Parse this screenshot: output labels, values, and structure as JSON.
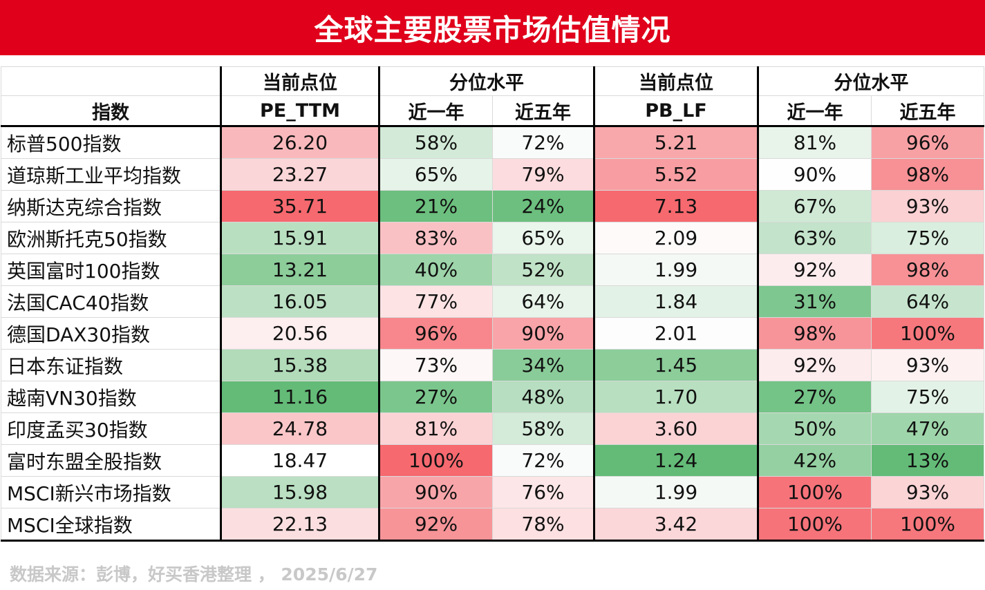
{
  "title": "全球主要股票市场估值情况",
  "headers": {
    "index_col": "指数",
    "pe_group": "当前点位",
    "pe_sub": "PE_TTM",
    "pe_pct_group": "分位水平",
    "pe_pct_1y": "近一年",
    "pe_pct_5y": "近五年",
    "pb_group": "当前点位",
    "pb_sub": "PB_LF",
    "pb_pct_group": "分位水平",
    "pb_pct_1y": "近一年",
    "pb_pct_5y": "近五年"
  },
  "rows": [
    {
      "name": "标普500指数",
      "cells": [
        {
          "v": "26.20",
          "bg": "#f9b9bc"
        },
        {
          "v": "58%",
          "bg": "#d2ead7"
        },
        {
          "v": "72%",
          "bg": "#f8fbf9"
        },
        {
          "v": "5.21",
          "bg": "#f8a8ab"
        },
        {
          "v": "81%",
          "bg": "#e8f4ea"
        },
        {
          "v": "96%",
          "bg": "#f8a1a5"
        }
      ]
    },
    {
      "name": "道琼斯工业平均指数",
      "cells": [
        {
          "v": "23.27",
          "bg": "#fbd6d8"
        },
        {
          "v": "65%",
          "bg": "#e6f3e8"
        },
        {
          "v": "79%",
          "bg": "#fcdcde"
        },
        {
          "v": "5.52",
          "bg": "#f89ea2"
        },
        {
          "v": "90%",
          "bg": "#fdfefd"
        },
        {
          "v": "98%",
          "bg": "#f79195"
        }
      ]
    },
    {
      "name": "纳斯达克综合指数",
      "cells": [
        {
          "v": "35.71",
          "bg": "#f6696f"
        },
        {
          "v": "21%",
          "bg": "#6cbf7e"
        },
        {
          "v": "24%",
          "bg": "#6cbf7e"
        },
        {
          "v": "7.13",
          "bg": "#f6696f"
        },
        {
          "v": "67%",
          "bg": "#cfe9d4"
        },
        {
          "v": "93%",
          "bg": "#fbd1d3"
        }
      ]
    },
    {
      "name": "欧洲斯托克50指数",
      "cells": [
        {
          "v": "15.91",
          "bg": "#b9dfc1"
        },
        {
          "v": "83%",
          "bg": "#fac1c4"
        },
        {
          "v": "65%",
          "bg": "#eaf5ec"
        },
        {
          "v": "2.09",
          "bg": "#fefafa"
        },
        {
          "v": "63%",
          "bg": "#c3e3ca"
        },
        {
          "v": "75%",
          "bg": "#d9eede"
        }
      ]
    },
    {
      "name": "英国富时100指数",
      "cells": [
        {
          "v": "13.21",
          "bg": "#8ccd9a"
        },
        {
          "v": "40%",
          "bg": "#9dd4a9"
        },
        {
          "v": "52%",
          "bg": "#c0e2c7"
        },
        {
          "v": "1.99",
          "bg": "#f4f9f5"
        },
        {
          "v": "92%",
          "bg": "#fdecee"
        },
        {
          "v": "98%",
          "bg": "#f79195"
        }
      ]
    },
    {
      "name": "法国CAC40指数",
      "cells": [
        {
          "v": "16.05",
          "bg": "#bce0c3"
        },
        {
          "v": "77%",
          "bg": "#fde3e4"
        },
        {
          "v": "64%",
          "bg": "#e8f4ea"
        },
        {
          "v": "1.84",
          "bg": "#e3f2e6"
        },
        {
          "v": "31%",
          "bg": "#7ec790"
        },
        {
          "v": "64%",
          "bg": "#c7e5ce"
        }
      ]
    },
    {
      "name": "德国DAX30指数",
      "cells": [
        {
          "v": "20.56",
          "bg": "#fdeeef"
        },
        {
          "v": "96%",
          "bg": "#f7878c"
        },
        {
          "v": "90%",
          "bg": "#f8a4a8"
        },
        {
          "v": "2.01",
          "bg": "#fcfdfc"
        },
        {
          "v": "98%",
          "bg": "#f79499"
        },
        {
          "v": "100%",
          "bg": "#f6787d"
        }
      ]
    },
    {
      "name": "日本东证指数",
      "cells": [
        {
          "v": "15.38",
          "bg": "#b1dbb9"
        },
        {
          "v": "73%",
          "bg": "#fef7f7"
        },
        {
          "v": "34%",
          "bg": "#8acc99"
        },
        {
          "v": "1.45",
          "bg": "#8ccd9a"
        },
        {
          "v": "92%",
          "bg": "#fdecee"
        },
        {
          "v": "93%",
          "bg": "#fdf1f2"
        }
      ]
    },
    {
      "name": "越南VN30指数",
      "cells": [
        {
          "v": "11.16",
          "bg": "#63bb77"
        },
        {
          "v": "27%",
          "bg": "#7bc68d"
        },
        {
          "v": "48%",
          "bg": "#b7dec0"
        },
        {
          "v": "1.70",
          "bg": "#b8dfc0"
        },
        {
          "v": "27%",
          "bg": "#74c387"
        },
        {
          "v": "75%",
          "bg": "#e3f2e6"
        }
      ]
    },
    {
      "name": "印度孟买30指数",
      "cells": [
        {
          "v": "24.78",
          "bg": "#fac6c8"
        },
        {
          "v": "81%",
          "bg": "#fcd3d5"
        },
        {
          "v": "58%",
          "bg": "#d4ebd9"
        },
        {
          "v": "3.60",
          "bg": "#fbd3d5"
        },
        {
          "v": "50%",
          "bg": "#a5d8b0"
        },
        {
          "v": "47%",
          "bg": "#9fd5aa"
        }
      ]
    },
    {
      "name": "富时东盟全股指数",
      "cells": [
        {
          "v": "18.47",
          "bg": "#ffffff"
        },
        {
          "v": "100%",
          "bg": "#f6696f"
        },
        {
          "v": "72%",
          "bg": "#f8fbf9"
        },
        {
          "v": "1.24",
          "bg": "#63bb77"
        },
        {
          "v": "42%",
          "bg": "#94d0a1"
        },
        {
          "v": "13%",
          "bg": "#63bb77"
        }
      ]
    },
    {
      "name": "MSCI新兴市场指数",
      "cells": [
        {
          "v": "15.98",
          "bg": "#badfc2"
        },
        {
          "v": "90%",
          "bg": "#f8a5a9"
        },
        {
          "v": "76%",
          "bg": "#fde6e7"
        },
        {
          "v": "1.99",
          "bg": "#f4f9f5"
        },
        {
          "v": "100%",
          "bg": "#f6737a"
        },
        {
          "v": "93%",
          "bg": "#fbd4d6"
        }
      ]
    },
    {
      "name": "MSCI全球指数",
      "cells": [
        {
          "v": "22.13",
          "bg": "#fbdfe0"
        },
        {
          "v": "92%",
          "bg": "#f79498"
        },
        {
          "v": "78%",
          "bg": "#fde0e1"
        },
        {
          "v": "3.42",
          "bg": "#fbd7d9"
        },
        {
          "v": "100%",
          "bg": "#f6737a"
        },
        {
          "v": "100%",
          "bg": "#f6787d"
        }
      ]
    }
  ],
  "footer": "数据来源：彭博，好买香港整理 ，  2025/6/27",
  "colors": {
    "banner": "#e0001b",
    "high": "#f6696f",
    "low": "#63bb77"
  }
}
